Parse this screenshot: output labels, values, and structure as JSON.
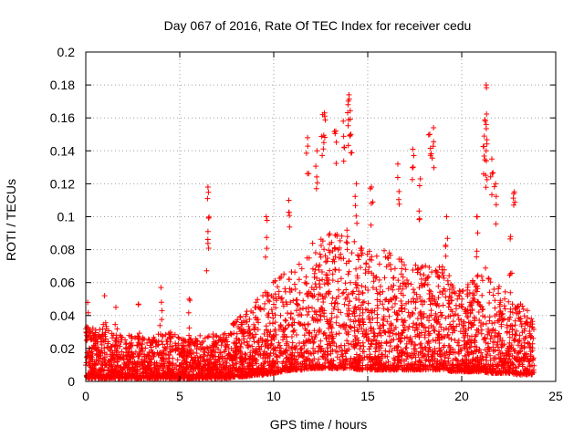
{
  "chart_data": {
    "type": "scatter",
    "title": "Day 067 of 2016, Rate Of TEC Index for receiver cedu",
    "xlabel": "GPS time / hours",
    "ylabel": "ROTI / TECUs",
    "xlim": [
      0,
      25
    ],
    "ylim": [
      0,
      0.2
    ],
    "xticks": [
      0,
      5,
      10,
      15,
      20,
      25
    ],
    "yticks": [
      0,
      0.02,
      0.04,
      0.06,
      0.08,
      0.1,
      0.12,
      0.14,
      0.16,
      0.18,
      0.2
    ],
    "grid": true,
    "marker": "plus",
    "color": "#ff0000",
    "x_data_range": [
      0,
      23.85
    ],
    "envelope": {
      "x": [
        0,
        0.5,
        1,
        1.5,
        2,
        2.5,
        3,
        3.5,
        4,
        4.5,
        5,
        5.5,
        6,
        6.5,
        7,
        7.5,
        8,
        8.5,
        9,
        9.5,
        10,
        10.5,
        11,
        11.5,
        12,
        12.5,
        13,
        13.5,
        14,
        14.5,
        15,
        15.5,
        16,
        16.5,
        17,
        17.5,
        18,
        18.5,
        19,
        19.5,
        20,
        20.5,
        21,
        21.5,
        22,
        22.5,
        23,
        23.5,
        23.85
      ],
      "baseline": [
        0.008,
        0.008,
        0.008,
        0.008,
        0.008,
        0.008,
        0.008,
        0.008,
        0.008,
        0.008,
        0.008,
        0.008,
        0.008,
        0.008,
        0.008,
        0.008,
        0.009,
        0.009,
        0.01,
        0.01,
        0.011,
        0.012,
        0.013,
        0.013,
        0.014,
        0.014,
        0.014,
        0.014,
        0.014,
        0.013,
        0.013,
        0.013,
        0.013,
        0.013,
        0.013,
        0.013,
        0.013,
        0.013,
        0.013,
        0.012,
        0.012,
        0.012,
        0.012,
        0.011,
        0.011,
        0.011,
        0.01,
        0.01,
        0.01
      ],
      "upper": [
        0.035,
        0.032,
        0.035,
        0.03,
        0.028,
        0.028,
        0.027,
        0.027,
        0.03,
        0.03,
        0.027,
        0.027,
        0.028,
        0.03,
        0.028,
        0.03,
        0.038,
        0.042,
        0.048,
        0.055,
        0.062,
        0.065,
        0.07,
        0.072,
        0.085,
        0.09,
        0.09,
        0.092,
        0.095,
        0.085,
        0.08,
        0.082,
        0.08,
        0.075,
        0.075,
        0.072,
        0.07,
        0.072,
        0.07,
        0.062,
        0.058,
        0.06,
        0.07,
        0.068,
        0.06,
        0.055,
        0.05,
        0.045,
        0.035
      ]
    },
    "notable_points": [
      {
        "x": 0.1,
        "y": 0.048
      },
      {
        "x": 1.0,
        "y": 0.052
      },
      {
        "x": 1.6,
        "y": 0.045
      },
      {
        "x": 2.8,
        "y": 0.047
      },
      {
        "x": 4.0,
        "y": 0.057
      },
      {
        "x": 5.5,
        "y": 0.05
      },
      {
        "x": 6.5,
        "y": 0.118
      },
      {
        "x": 6.5,
        "y": 0.091
      },
      {
        "x": 9.6,
        "y": 0.1
      },
      {
        "x": 10.8,
        "y": 0.11
      },
      {
        "x": 11.8,
        "y": 0.148
      },
      {
        "x": 12.3,
        "y": 0.14
      },
      {
        "x": 12.7,
        "y": 0.163
      },
      {
        "x": 12.6,
        "y": 0.162
      },
      {
        "x": 13.3,
        "y": 0.152
      },
      {
        "x": 13.7,
        "y": 0.158
      },
      {
        "x": 14.0,
        "y": 0.174
      },
      {
        "x": 13.95,
        "y": 0.168
      },
      {
        "x": 14.1,
        "y": 0.15
      },
      {
        "x": 14.4,
        "y": 0.12
      },
      {
        "x": 15.2,
        "y": 0.118
      },
      {
        "x": 16.6,
        "y": 0.132
      },
      {
        "x": 17.4,
        "y": 0.141
      },
      {
        "x": 17.8,
        "y": 0.123
      },
      {
        "x": 18.3,
        "y": 0.15
      },
      {
        "x": 18.5,
        "y": 0.154
      },
      {
        "x": 19.2,
        "y": 0.1
      },
      {
        "x": 20.8,
        "y": 0.1
      },
      {
        "x": 21.3,
        "y": 0.18
      },
      {
        "x": 21.3,
        "y": 0.156
      },
      {
        "x": 21.2,
        "y": 0.149
      },
      {
        "x": 21.3,
        "y": 0.14
      },
      {
        "x": 21.6,
        "y": 0.135
      },
      {
        "x": 21.8,
        "y": 0.12
      },
      {
        "x": 22.8,
        "y": 0.115
      },
      {
        "x": 22.6,
        "y": 0.088
      }
    ]
  }
}
